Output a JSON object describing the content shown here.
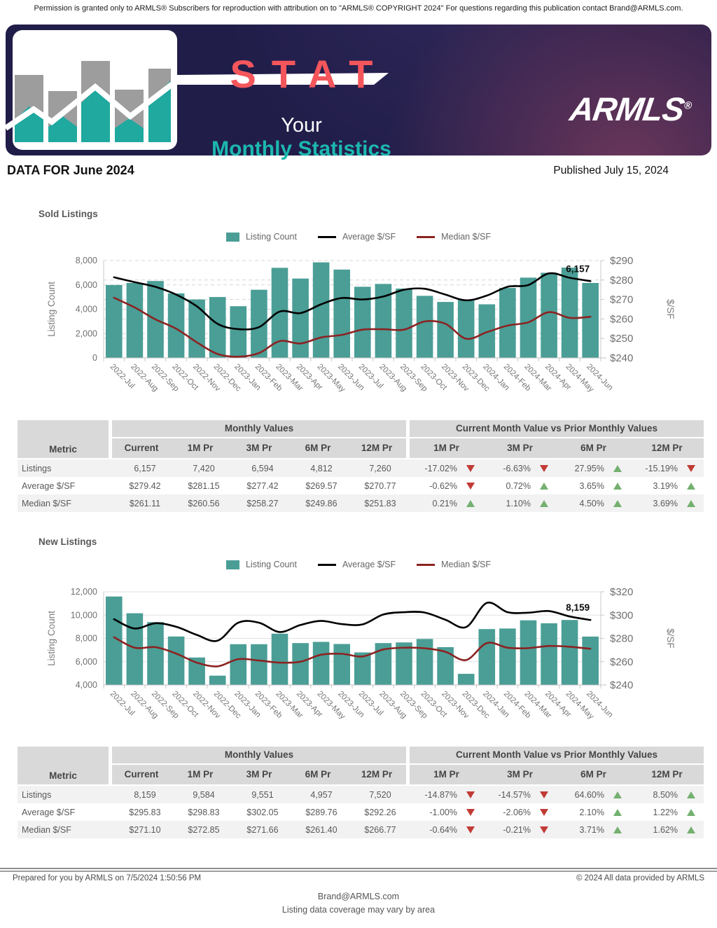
{
  "page": {
    "permission": "Permission is granted only to ARMLS® Subscribers for reproduction with attribution on to \"ARMLS® COPYRIGHT 2024\" For questions regarding this publication contact Brand@ARMLS.com.",
    "data_for": "DATA FOR June 2024",
    "published": "Published July 15, 2024",
    "footer": {
      "prepared": "Prepared for you by ARMLS on 7/5/2024 1:50:56 PM",
      "copyright": "© 2024 All data provided by ARMLS",
      "email": "Brand@ARMLS.com",
      "note": "Listing data coverage may vary by area"
    }
  },
  "banner": {
    "stat": "STAT",
    "your": "Your",
    "monthly": "Monthly Statistics",
    "brand": "ARMLS",
    "registered": "®"
  },
  "colors": {
    "bar_teal": "#4A9E96",
    "avg_line_black": "#000000",
    "median_line_red": "#8B2322",
    "banner_navy": "#211D49",
    "stat_coral": "#F4565B",
    "brand_teal": "#1CB8B0",
    "up_green": "#74B06F",
    "down_red": "#C13B36",
    "table_header_bg": "#D9D9D9",
    "row_alt_bg": "#F2F2F2"
  },
  "chart_data": [
    {
      "id": "sold",
      "type": "bar",
      "title": "Sold Listings",
      "legend": [
        {
          "label": "Listing Count",
          "swatch": "bar",
          "color": "#4A9E96"
        },
        {
          "label": "Average $/SF",
          "swatch": "line",
          "color": "#000000"
        },
        {
          "label": "Median $/SF",
          "swatch": "line",
          "color": "#8B2322"
        }
      ],
      "categories": [
        "2022-Jul",
        "2022-Aug",
        "2022-Sep",
        "2022-Oct",
        "2022-Nov",
        "2022-Dec",
        "2023-Jan",
        "2023-Feb",
        "2023-Mar",
        "2023-Apr",
        "2023-May",
        "2023-Jun",
        "2023-Jul",
        "2023-Aug",
        "2023-Sep",
        "2023-Oct",
        "2023-Nov",
        "2023-Dec",
        "2024-Jan",
        "2024-Feb",
        "2024-Mar",
        "2024-Apr",
        "2024-May",
        "2024-Jun"
      ],
      "bar_series": {
        "name": "Listing Count",
        "axis": "left",
        "values": [
          5990,
          6160,
          6320,
          5300,
          4800,
          5000,
          4250,
          5600,
          7400,
          6520,
          7850,
          7260,
          5850,
          6080,
          5700,
          5100,
          4600,
          4812,
          4400,
          5750,
          6594,
          7000,
          7420,
          6157
        ]
      },
      "line_series": [
        {
          "name": "Average $/SF",
          "axis": "right",
          "color": "#000000",
          "values": [
            281.4,
            278.9,
            276.5,
            272.5,
            266.5,
            257.5,
            254.8,
            255.8,
            263.8,
            263.0,
            267.5,
            270.77,
            270.0,
            271.5,
            275.0,
            275.5,
            272.5,
            269.57,
            272.0,
            276.5,
            277.42,
            283.4,
            281.15,
            279.42
          ]
        },
        {
          "name": "Median $/SF",
          "axis": "right",
          "color": "#8B2322",
          "values": [
            270.9,
            265.9,
            259.8,
            255.0,
            248.0,
            242.0,
            240.6,
            242.5,
            248.6,
            247.4,
            250.5,
            251.83,
            254.5,
            254.7,
            254.5,
            258.7,
            257.5,
            249.86,
            253.2,
            256.6,
            258.27,
            263.5,
            260.56,
            261.11
          ]
        }
      ],
      "left_axis": {
        "title": "Listing Count",
        "min": 0,
        "max": 8000,
        "ticks": [
          "0",
          "2,000",
          "4,000",
          "6,000",
          "8,000"
        ]
      },
      "right_axis": {
        "title": "$/SF",
        "min": 240,
        "max": 290,
        "ticks": [
          "$240",
          "$250",
          "$260",
          "$270",
          "$280",
          "$290"
        ]
      },
      "last_value_label": "6,157",
      "grid": "dashed",
      "legend_position": "top-center"
    },
    {
      "id": "new",
      "type": "bar",
      "title": "New Listings",
      "legend": [
        {
          "label": "Listing Count",
          "swatch": "bar",
          "color": "#4A9E96"
        },
        {
          "label": "Average $/SF",
          "swatch": "line",
          "color": "#000000"
        },
        {
          "label": "Median $/SF",
          "swatch": "line",
          "color": "#8B2322"
        }
      ],
      "categories": [
        "2022-Jul",
        "2022-Aug",
        "2022-Sep",
        "2022-Oct",
        "2022-Nov",
        "2022-Dec",
        "2023-Jan",
        "2023-Feb",
        "2023-Mar",
        "2023-Apr",
        "2023-May",
        "2023-Jun",
        "2023-Jul",
        "2023-Aug",
        "2023-Sep",
        "2023-Oct",
        "2023-Nov",
        "2023-Dec",
        "2024-Jan",
        "2024-Feb",
        "2024-Mar",
        "2024-Apr",
        "2024-May",
        "2024-Jun"
      ],
      "bar_series": {
        "name": "Listing Count",
        "axis": "left",
        "values": [
          11600,
          10160,
          9400,
          8160,
          6360,
          4800,
          7500,
          7500,
          8400,
          7600,
          7700,
          7520,
          6800,
          7600,
          7650,
          7950,
          7250,
          4957,
          8800,
          8850,
          9551,
          9300,
          9584,
          8159
        ]
      },
      "line_series": [
        {
          "name": "Average $/SF",
          "axis": "right",
          "color": "#000000",
          "values": [
            296.5,
            288.5,
            293.0,
            290.0,
            283.0,
            278.0,
            293.5,
            293.5,
            285.5,
            291.5,
            295.0,
            292.26,
            292.0,
            300.5,
            302.5,
            302.2,
            296.0,
            289.76,
            310.5,
            302.5,
            302.05,
            303.5,
            298.83,
            295.83
          ]
        },
        {
          "name": "Median $/SF",
          "axis": "right",
          "color": "#8B2322",
          "values": [
            281.0,
            272.0,
            272.5,
            267.0,
            259.2,
            256.0,
            262.2,
            261.0,
            259.2,
            260.0,
            266.0,
            266.77,
            264.5,
            270.5,
            272.0,
            271.5,
            268.5,
            261.4,
            276.0,
            272.0,
            271.66,
            273.5,
            272.85,
            271.1
          ]
        }
      ],
      "left_axis": {
        "title": "Listing Count",
        "min": 4000,
        "max": 12000,
        "ticks": [
          "4,000",
          "6,000",
          "8,000",
          "10,000",
          "12,000"
        ]
      },
      "right_axis": {
        "title": "$/SF",
        "min": 240,
        "max": 320,
        "ticks": [
          "$240",
          "$260",
          "$280",
          "$300",
          "$320"
        ]
      },
      "last_value_label": "8,159",
      "grid": "solid",
      "legend_position": "top-center"
    }
  ],
  "tables": {
    "sold": {
      "metric_header": "Metric",
      "monthly_group": "Monthly Values",
      "vs_group": "Current Month Value vs Prior Monthly Values",
      "monthly_cols": [
        "Current",
        "1M Pr",
        "3M Pr",
        "6M Pr",
        "12M Pr"
      ],
      "vs_cols": [
        "1M Pr",
        "3M Pr",
        "6M Pr",
        "12M Pr"
      ],
      "rows": [
        {
          "metric": "Listings",
          "monthly": [
            "6,157",
            "7,420",
            "6,594",
            "4,812",
            "7,260"
          ],
          "vs": [
            {
              "value": "-17.02%",
              "dir": "down"
            },
            {
              "value": "-6.63%",
              "dir": "down"
            },
            {
              "value": "27.95%",
              "dir": "up"
            },
            {
              "value": "-15.19%",
              "dir": "down"
            }
          ]
        },
        {
          "metric": "Average $/SF",
          "monthly": [
            "$279.42",
            "$281.15",
            "$277.42",
            "$269.57",
            "$270.77"
          ],
          "vs": [
            {
              "value": "-0.62%",
              "dir": "down"
            },
            {
              "value": "0.72%",
              "dir": "up"
            },
            {
              "value": "3.65%",
              "dir": "up"
            },
            {
              "value": "3.19%",
              "dir": "up"
            }
          ]
        },
        {
          "metric": "Median $/SF",
          "monthly": [
            "$261.11",
            "$260.56",
            "$258.27",
            "$249.86",
            "$251.83"
          ],
          "vs": [
            {
              "value": "0.21%",
              "dir": "up"
            },
            {
              "value": "1.10%",
              "dir": "up"
            },
            {
              "value": "4.50%",
              "dir": "up"
            },
            {
              "value": "3.69%",
              "dir": "up"
            }
          ]
        }
      ]
    },
    "new": {
      "metric_header": "Metric",
      "monthly_group": "Monthly Values",
      "vs_group": "Current Month Value vs Prior Monthly Values",
      "monthly_cols": [
        "Current",
        "1M Pr",
        "3M Pr",
        "6M Pr",
        "12M Pr"
      ],
      "vs_cols": [
        "1M Pr",
        "3M Pr",
        "6M Pr",
        "12M Pr"
      ],
      "rows": [
        {
          "metric": "Listings",
          "monthly": [
            "8,159",
            "9,584",
            "9,551",
            "4,957",
            "7,520"
          ],
          "vs": [
            {
              "value": "-14.87%",
              "dir": "down"
            },
            {
              "value": "-14.57%",
              "dir": "down"
            },
            {
              "value": "64.60%",
              "dir": "up"
            },
            {
              "value": "8.50%",
              "dir": "up"
            }
          ]
        },
        {
          "metric": "Average $/SF",
          "monthly": [
            "$295.83",
            "$298.83",
            "$302.05",
            "$289.76",
            "$292.26"
          ],
          "vs": [
            {
              "value": "-1.00%",
              "dir": "down"
            },
            {
              "value": "-2.06%",
              "dir": "down"
            },
            {
              "value": "2.10%",
              "dir": "up"
            },
            {
              "value": "1.22%",
              "dir": "up"
            }
          ]
        },
        {
          "metric": "Median $/SF",
          "monthly": [
            "$271.10",
            "$272.85",
            "$271.66",
            "$261.40",
            "$266.77"
          ],
          "vs": [
            {
              "value": "-0.64%",
              "dir": "down"
            },
            {
              "value": "-0.21%",
              "dir": "down"
            },
            {
              "value": "3.71%",
              "dir": "up"
            },
            {
              "value": "1.62%",
              "dir": "up"
            }
          ]
        }
      ]
    }
  }
}
